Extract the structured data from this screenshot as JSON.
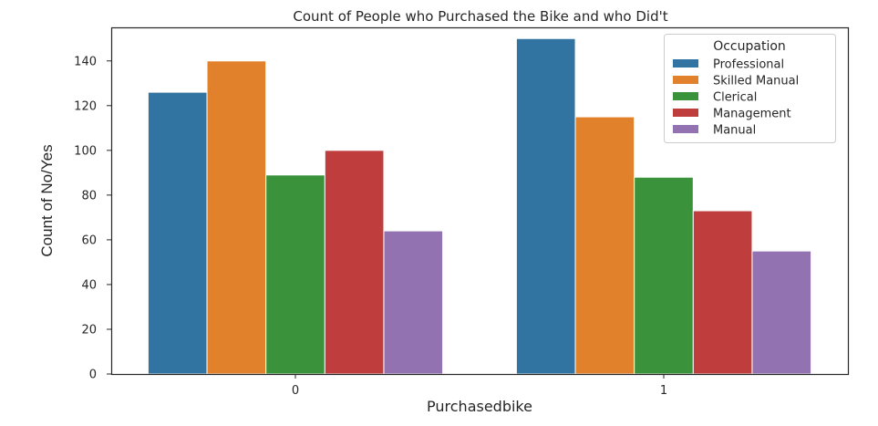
{
  "chart_data": {
    "type": "bar",
    "title": "Count of People who Purchased the Bike and who Did't",
    "xlabel": "Purchasedbike",
    "ylabel": "Count of No/Yes",
    "categories": [
      "0",
      "1"
    ],
    "ylim": [
      0,
      155
    ],
    "yticks": [
      0,
      20,
      40,
      60,
      80,
      100,
      120,
      140
    ],
    "grid": false,
    "legend_title": "Occupation",
    "legend_position": "top-right",
    "series": [
      {
        "name": "Professional",
        "color": "#3274a1",
        "values": [
          126,
          150
        ]
      },
      {
        "name": "Skilled Manual",
        "color": "#e1812c",
        "values": [
          140,
          115
        ]
      },
      {
        "name": "Clerical",
        "color": "#3a923a",
        "values": [
          89,
          88
        ]
      },
      {
        "name": "Management",
        "color": "#c03d3e",
        "values": [
          100,
          73
        ]
      },
      {
        "name": "Manual",
        "color": "#9372b2",
        "values": [
          64,
          55
        ]
      }
    ]
  }
}
